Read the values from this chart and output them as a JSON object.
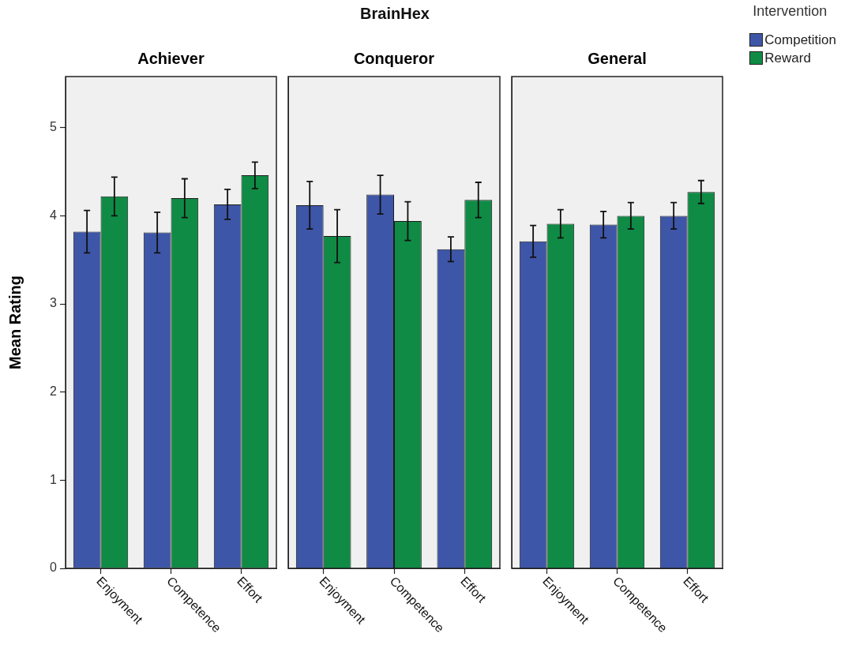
{
  "chart_data": [
    {
      "type": "bar",
      "title": "Achiever",
      "ylabel": "Mean Rating",
      "categories": [
        "Enjoyment",
        "Competence",
        "Effort"
      ],
      "series": [
        {
          "color": "#3e56a8",
          "values": [
            3.82,
            3.81,
            4.13
          ],
          "errors": [
            0.24,
            0.23,
            0.17
          ]
        },
        {
          "color": "#0f8b45",
          "values": [
            4.22,
            4.2,
            4.46
          ],
          "errors": [
            0.22,
            0.22,
            0.15
          ]
        }
      ],
      "ylim": [
        0,
        5.58
      ],
      "yticks": [
        0,
        1,
        2,
        3,
        4,
        5
      ]
    },
    {
      "type": "bar",
      "title": "Conqueror",
      "annotations": [
        "BrainHex"
      ],
      "categories": [
        "Enjoyment",
        "Competence",
        "Effort"
      ],
      "series": [
        {
          "color": "#3e56a8",
          "values": [
            4.12,
            4.24,
            3.62
          ],
          "errors": [
            0.27,
            0.22,
            0.14
          ]
        },
        {
          "color": "#0f8b45",
          "values": [
            3.77,
            3.94,
            4.18
          ],
          "errors": [
            0.3,
            0.22,
            0.2
          ]
        }
      ],
      "ylim": [
        0,
        5.58
      ],
      "tick_labels": "x"
    },
    {
      "type": "bar",
      "title": "General",
      "legend": "top right",
      "legend_title": "Intervention",
      "categories": [
        "Enjoyment",
        "Competence",
        "Effort"
      ],
      "series": [
        {
          "name": "Competition",
          "color": "#3e56a8",
          "values": [
            3.71,
            3.9,
            4.0
          ],
          "errors": [
            0.18,
            0.15,
            0.15
          ]
        },
        {
          "name": "Reward",
          "color": "#0f8b45",
          "values": [
            3.91,
            4.0,
            4.27
          ],
          "errors": [
            0.16,
            0.15,
            0.13
          ]
        }
      ],
      "ylim": [
        0,
        5.58
      ],
      "tick_labels": "x"
    }
  ]
}
